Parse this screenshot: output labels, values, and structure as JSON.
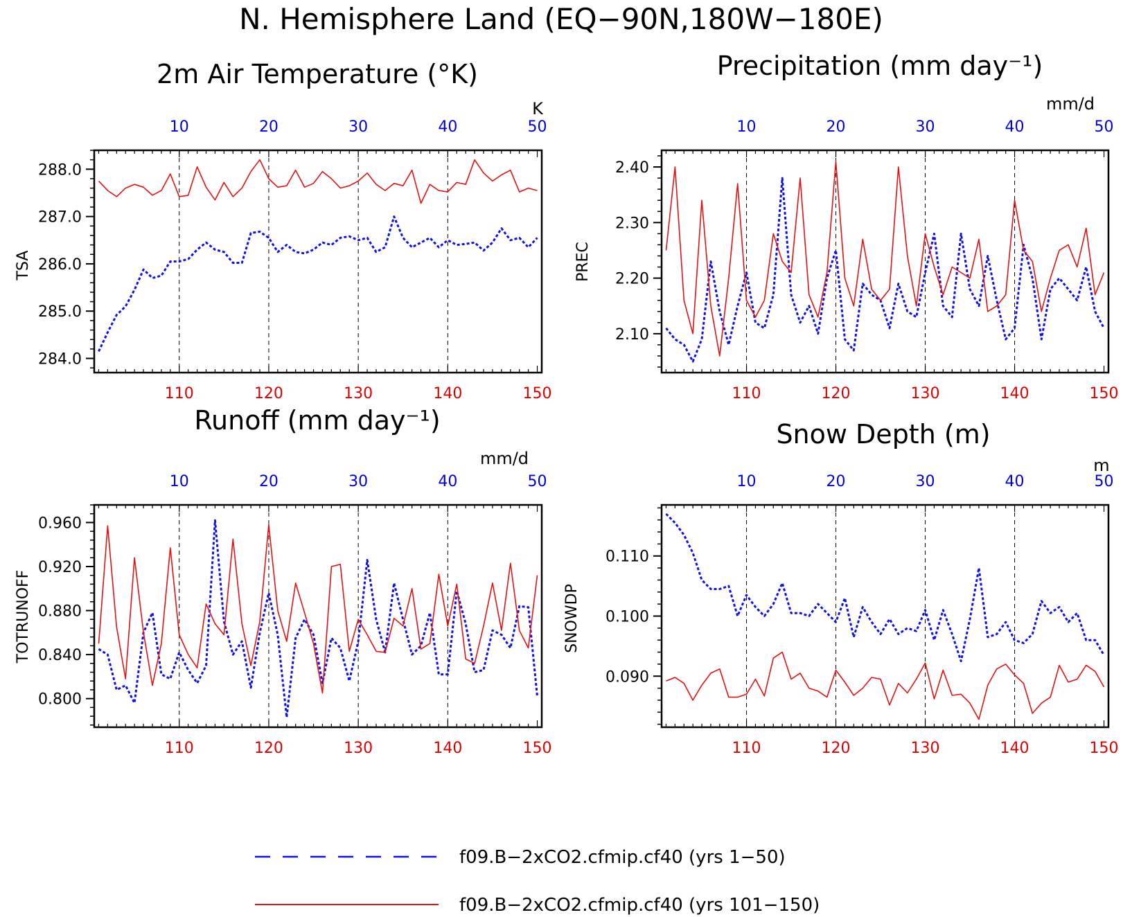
{
  "title": "N. Hemisphere Land (EQ−90N,180W−180E)",
  "colors": {
    "bottom_axis": "#e00000",
    "top_axis": "#0000e0",
    "series_a": "#1010e8",
    "series_b": "#e81010"
  },
  "legend": [
    {
      "label": "f09.B−2xCO2.cfmip.cf40 (yrs 1−50)",
      "style": "dashed",
      "color": "#1010e8"
    },
    {
      "label": "f09.B−2xCO2.cfmip.cf40 (yrs 101−150)",
      "style": "solid",
      "color": "#e81010"
    }
  ],
  "panels": [
    {
      "title": "2m Air Temperature (°K)",
      "ylabel": "TSA",
      "unit": "K",
      "top_ticks": [
        "10",
        "20",
        "30",
        "40",
        "50"
      ],
      "bottom_ticks": [
        "110",
        "120",
        "130",
        "140",
        "150"
      ],
      "ytick_labels": [
        "284.0",
        "285.0",
        "286.0",
        "287.0",
        "288.0"
      ]
    },
    {
      "title": "Precipitation (mm day⁻¹)",
      "ylabel": "PREC",
      "unit": "mm/d",
      "top_ticks": [
        "10",
        "20",
        "30",
        "40",
        "50"
      ],
      "bottom_ticks": [
        "110",
        "120",
        "130",
        "140",
        "150"
      ],
      "ytick_labels": [
        "2.10",
        "2.20",
        "2.30",
        "2.40"
      ]
    },
    {
      "title": "Runoff (mm day⁻¹)",
      "ylabel": "TOTRUNOFF",
      "unit": "mm/d",
      "top_ticks": [
        "10",
        "20",
        "30",
        "40",
        "50"
      ],
      "bottom_ticks": [
        "110",
        "120",
        "130",
        "140",
        "150"
      ],
      "ytick_labels": [
        "0.800",
        "0.840",
        "0.880",
        "0.920",
        "0.960"
      ]
    },
    {
      "title": "Snow Depth (m)",
      "ylabel": "SNOWDP",
      "unit": "m",
      "top_ticks": [
        "10",
        "20",
        "30",
        "40",
        "50"
      ],
      "bottom_ticks": [
        "110",
        "120",
        "130",
        "140",
        "150"
      ],
      "ytick_labels": [
        "0.090",
        "0.100",
        "0.110"
      ]
    }
  ],
  "chart_data": [
    {
      "type": "line",
      "title": "2m Air Temperature (°K)",
      "ylabel": "TSA",
      "unit": "K",
      "ylim": [
        283.7,
        288.4
      ],
      "yticks": [
        284.0,
        285.0,
        286.0,
        287.0,
        288.0
      ],
      "x_top": {
        "label": "yrs 1−50",
        "range": [
          1,
          50
        ],
        "ticks": [
          10,
          20,
          30,
          40,
          50
        ]
      },
      "x_bottom": {
        "label": "yrs 101−150",
        "range": [
          101,
          150
        ],
        "ticks": [
          110,
          120,
          130,
          140,
          150
        ]
      },
      "grid": "vertical dashed at ticks",
      "series": [
        {
          "name": "f09.B−2xCO2.cfmip.cf40 (yrs 1−50)",
          "style": "dashed",
          "values": [
            284.15,
            284.55,
            284.92,
            285.1,
            285.45,
            285.88,
            285.7,
            285.75,
            286.05,
            286.05,
            286.1,
            286.3,
            286.45,
            286.3,
            286.25,
            286.02,
            286.02,
            286.65,
            286.68,
            286.55,
            286.25,
            286.4,
            286.25,
            286.22,
            286.3,
            286.45,
            286.4,
            286.55,
            286.58,
            286.5,
            286.55,
            286.25,
            286.35,
            287.0,
            286.55,
            286.35,
            286.45,
            286.55,
            286.35,
            286.5,
            286.4,
            286.42,
            286.45,
            286.28,
            286.45,
            286.75,
            286.5,
            286.55,
            286.35,
            286.55
          ]
        },
        {
          "name": "f09.B−2xCO2.cfmip.cf40 (yrs 101−150)",
          "style": "solid",
          "values": [
            287.75,
            287.55,
            287.42,
            287.6,
            287.68,
            287.62,
            287.45,
            287.55,
            287.9,
            287.42,
            287.45,
            288.05,
            287.62,
            287.35,
            287.72,
            287.42,
            287.6,
            287.95,
            288.2,
            287.8,
            287.62,
            287.65,
            287.98,
            287.62,
            287.7,
            287.95,
            287.8,
            287.6,
            287.65,
            287.75,
            287.92,
            287.68,
            287.55,
            287.7,
            287.65,
            287.98,
            287.28,
            287.68,
            287.55,
            287.52,
            287.72,
            287.68,
            288.2,
            287.92,
            287.75,
            287.88,
            287.98,
            287.52,
            287.6,
            287.55
          ]
        }
      ]
    },
    {
      "type": "line",
      "title": "Precipitation (mm day⁻¹)",
      "ylabel": "PREC",
      "unit": "mm/d",
      "ylim": [
        2.03,
        2.43
      ],
      "yticks": [
        2.1,
        2.2,
        2.3,
        2.4
      ],
      "x_top": {
        "label": "yrs 1−50",
        "range": [
          1,
          50
        ],
        "ticks": [
          10,
          20,
          30,
          40,
          50
        ]
      },
      "x_bottom": {
        "label": "yrs 101−150",
        "range": [
          101,
          150
        ],
        "ticks": [
          110,
          120,
          130,
          140,
          150
        ]
      },
      "grid": "vertical dashed at ticks",
      "series": [
        {
          "name": "f09.B−2xCO2.cfmip.cf40 (yrs 1−50)",
          "style": "dashed",
          "values": [
            2.11,
            2.09,
            2.08,
            2.05,
            2.09,
            2.23,
            2.14,
            2.08,
            2.15,
            2.21,
            2.12,
            2.11,
            2.17,
            2.38,
            2.17,
            2.12,
            2.15,
            2.1,
            2.2,
            2.25,
            2.09,
            2.07,
            2.19,
            2.17,
            2.16,
            2.11,
            2.19,
            2.14,
            2.13,
            2.21,
            2.28,
            2.15,
            2.13,
            2.28,
            2.18,
            2.15,
            2.24,
            2.16,
            2.09,
            2.11,
            2.26,
            2.2,
            2.09,
            2.18,
            2.2,
            2.18,
            2.16,
            2.22,
            2.14,
            2.11
          ]
        },
        {
          "name": "f09.B−2xCO2.cfmip.cf40 (yrs 101−150)",
          "style": "solid",
          "values": [
            2.25,
            2.4,
            2.16,
            2.1,
            2.34,
            2.15,
            2.06,
            2.2,
            2.37,
            2.16,
            2.13,
            2.16,
            2.28,
            2.23,
            2.21,
            2.38,
            2.17,
            2.13,
            2.21,
            2.41,
            2.2,
            2.15,
            2.27,
            2.18,
            2.16,
            2.18,
            2.4,
            2.24,
            2.15,
            2.28,
            2.22,
            2.17,
            2.22,
            2.21,
            2.2,
            2.27,
            2.14,
            2.15,
            2.17,
            2.34,
            2.25,
            2.23,
            2.14,
            2.2,
            2.25,
            2.26,
            2.22,
            2.29,
            2.17,
            2.21
          ]
        }
      ]
    },
    {
      "type": "line",
      "title": "Runoff (mm day⁻¹)",
      "ylabel": "TOTRUNOFF",
      "unit": "mm/d",
      "ylim": [
        0.774,
        0.976
      ],
      "yticks": [
        0.8,
        0.84,
        0.88,
        0.92,
        0.96
      ],
      "x_top": {
        "label": "yrs 1−50",
        "range": [
          1,
          50
        ],
        "ticks": [
          10,
          20,
          30,
          40,
          50
        ]
      },
      "x_bottom": {
        "label": "yrs 101−150",
        "range": [
          101,
          150
        ],
        "ticks": [
          110,
          120,
          130,
          140,
          150
        ]
      },
      "grid": "vertical dashed at ticks",
      "series": [
        {
          "name": "f09.B−2xCO2.cfmip.cf40 (yrs 1−50)",
          "style": "dashed",
          "values": [
            0.845,
            0.84,
            0.808,
            0.812,
            0.796,
            0.86,
            0.878,
            0.822,
            0.818,
            0.842,
            0.826,
            0.814,
            0.83,
            0.962,
            0.87,
            0.84,
            0.852,
            0.81,
            0.86,
            0.896,
            0.858,
            0.783,
            0.855,
            0.872,
            0.858,
            0.814,
            0.855,
            0.846,
            0.816,
            0.852,
            0.926,
            0.872,
            0.842,
            0.905,
            0.872,
            0.84,
            0.848,
            0.878,
            0.822,
            0.822,
            0.898,
            0.868,
            0.824,
            0.826,
            0.862,
            0.858,
            0.846,
            0.884,
            0.883,
            0.802
          ]
        },
        {
          "name": "f09.B−2xCO2.cfmip.cf40 (yrs 101−150)",
          "style": "solid",
          "values": [
            0.85,
            0.957,
            0.865,
            0.818,
            0.928,
            0.86,
            0.812,
            0.85,
            0.937,
            0.858,
            0.84,
            0.828,
            0.886,
            0.868,
            0.858,
            0.945,
            0.868,
            0.83,
            0.87,
            0.958,
            0.88,
            0.852,
            0.905,
            0.878,
            0.85,
            0.805,
            0.92,
            0.922,
            0.843,
            0.872,
            0.858,
            0.843,
            0.842,
            0.873,
            0.866,
            0.9,
            0.845,
            0.85,
            0.913,
            0.866,
            0.904,
            0.836,
            0.832,
            0.866,
            0.905,
            0.862,
            0.923,
            0.862,
            0.846,
            0.912
          ]
        }
      ]
    },
    {
      "type": "line",
      "title": "Snow Depth (m)",
      "ylabel": "SNOWDP",
      "unit": "m",
      "ylim": [
        0.0815,
        0.1185
      ],
      "yticks": [
        0.09,
        0.1,
        0.11
      ],
      "x_top": {
        "label": "yrs 1−50",
        "range": [
          1,
          50
        ],
        "ticks": [
          10,
          20,
          30,
          40,
          50
        ]
      },
      "x_bottom": {
        "label": "yrs 101−150",
        "range": [
          101,
          150
        ],
        "ticks": [
          110,
          120,
          130,
          140,
          150
        ]
      },
      "grid": "vertical dashed at ticks",
      "series": [
        {
          "name": "f09.B−2xCO2.cfmip.cf40 (yrs 1−50)",
          "style": "dashed",
          "values": [
            0.117,
            0.1155,
            0.1135,
            0.1105,
            0.106,
            0.1045,
            0.1045,
            0.105,
            0.1,
            0.1035,
            0.1015,
            0.1,
            0.102,
            0.1055,
            0.1005,
            0.1005,
            0.1,
            0.102,
            0.1005,
            0.099,
            0.103,
            0.0965,
            0.1015,
            0.099,
            0.097,
            0.0995,
            0.097,
            0.098,
            0.0975,
            0.101,
            0.096,
            0.101,
            0.097,
            0.0925,
            0.0995,
            0.108,
            0.0965,
            0.097,
            0.099,
            0.096,
            0.0955,
            0.097,
            0.1025,
            0.1005,
            0.1015,
            0.099,
            0.1005,
            0.096,
            0.096,
            0.0935
          ]
        },
        {
          "name": "f09.B−2xCO2.cfmip.cf40 (yrs 101−150)",
          "style": "solid",
          "values": [
            0.0892,
            0.0898,
            0.0888,
            0.086,
            0.0885,
            0.0905,
            0.0912,
            0.0865,
            0.0865,
            0.087,
            0.0895,
            0.0867,
            0.093,
            0.094,
            0.0895,
            0.0905,
            0.088,
            0.0875,
            0.0865,
            0.091,
            0.089,
            0.0868,
            0.088,
            0.0898,
            0.0895,
            0.0852,
            0.0888,
            0.0872,
            0.0895,
            0.0922,
            0.0862,
            0.091,
            0.0868,
            0.087,
            0.0855,
            0.0828,
            0.0885,
            0.0912,
            0.092,
            0.0902,
            0.0888,
            0.0838,
            0.0855,
            0.0865,
            0.0918,
            0.089,
            0.0895,
            0.0918,
            0.0908,
            0.0882
          ]
        }
      ]
    }
  ]
}
